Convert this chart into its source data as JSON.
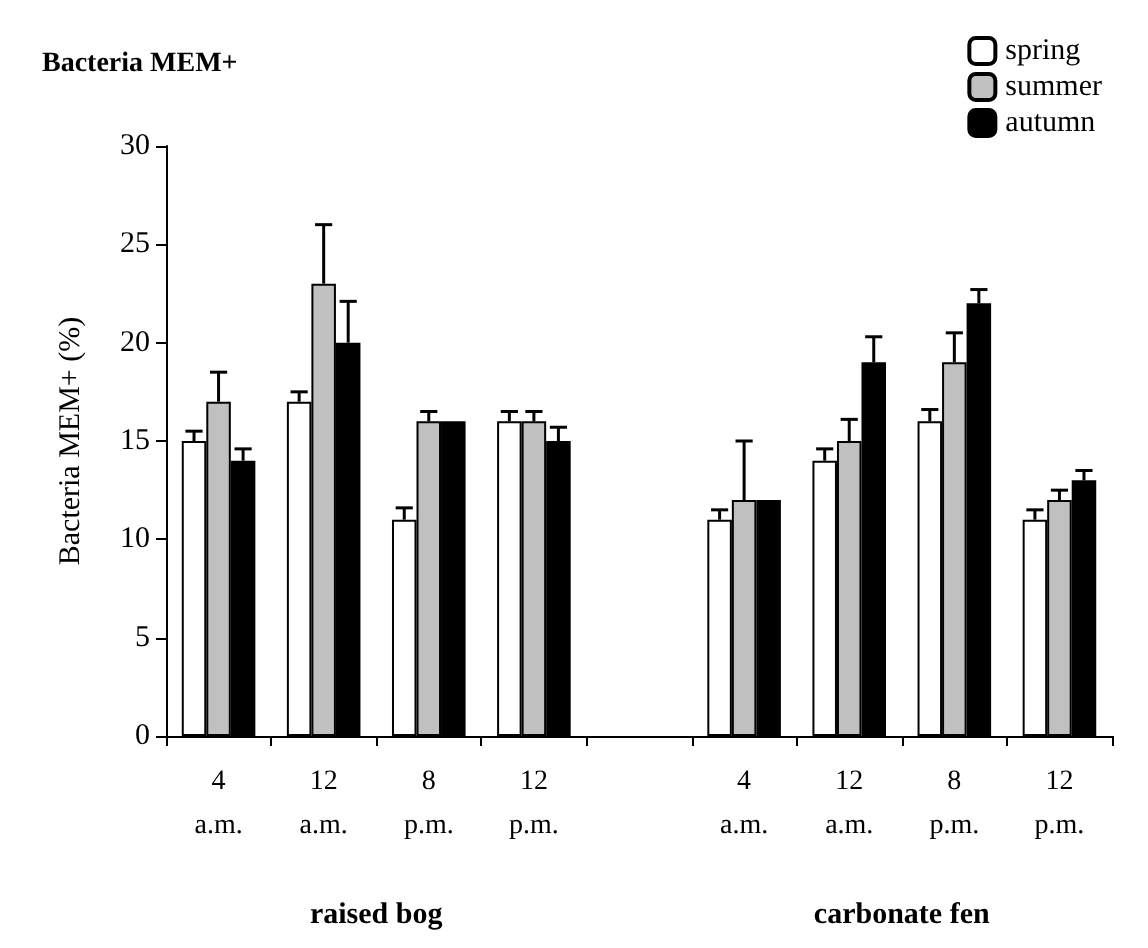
{
  "chart_data": {
    "type": "bar",
    "title": "Bacteria MEM+",
    "ylabel": "Bacteria MEM+ (%)",
    "categories": [
      "4\na.m.",
      "12\na.m.",
      "8\np.m.",
      "12\np.m.",
      null,
      "4\na.m.",
      "12\na.m.",
      "8\np.m.",
      "12\np.m."
    ],
    "series": [
      {
        "name": "spring",
        "color": "#ffffff",
        "values": [
          15,
          17,
          11,
          16,
          null,
          11,
          14,
          16,
          11
        ],
        "errors": [
          [
            15,
            15.5
          ],
          [
            17,
            17.5
          ],
          [
            11,
            11.6
          ],
          [
            16,
            16.5
          ],
          null,
          [
            11,
            11.5
          ],
          [
            14,
            14.6
          ],
          [
            16,
            16.6
          ],
          [
            11,
            11.5
          ]
        ]
      },
      {
        "name": "summer",
        "color": "#c0c0c0",
        "values": [
          17,
          23,
          16,
          16,
          null,
          12,
          15,
          19,
          12
        ],
        "errors": [
          [
            17,
            18.5
          ],
          [
            23,
            26
          ],
          [
            16,
            16.5
          ],
          [
            16,
            16.5
          ],
          null,
          [
            12,
            15
          ],
          [
            15,
            16.1
          ],
          [
            19,
            20.5
          ],
          [
            12,
            12.5
          ]
        ]
      },
      {
        "name": "autumn",
        "color": "#000000",
        "values": [
          14,
          20,
          16,
          15,
          null,
          12,
          19,
          22,
          13
        ],
        "errors": [
          [
            14,
            14.6
          ],
          [
            20,
            22.1
          ],
          null,
          [
            15,
            15.7
          ],
          null,
          null,
          [
            19,
            20.3
          ],
          [
            22,
            22.7
          ],
          [
            13,
            13.5
          ]
        ]
      }
    ],
    "annotations": [
      "raised bog",
      "carbonate fen"
    ],
    "ylim": [
      0,
      30
    ],
    "yticks": [
      0,
      5,
      10,
      15,
      20,
      25,
      30
    ],
    "grid": false,
    "legend": "top right"
  }
}
